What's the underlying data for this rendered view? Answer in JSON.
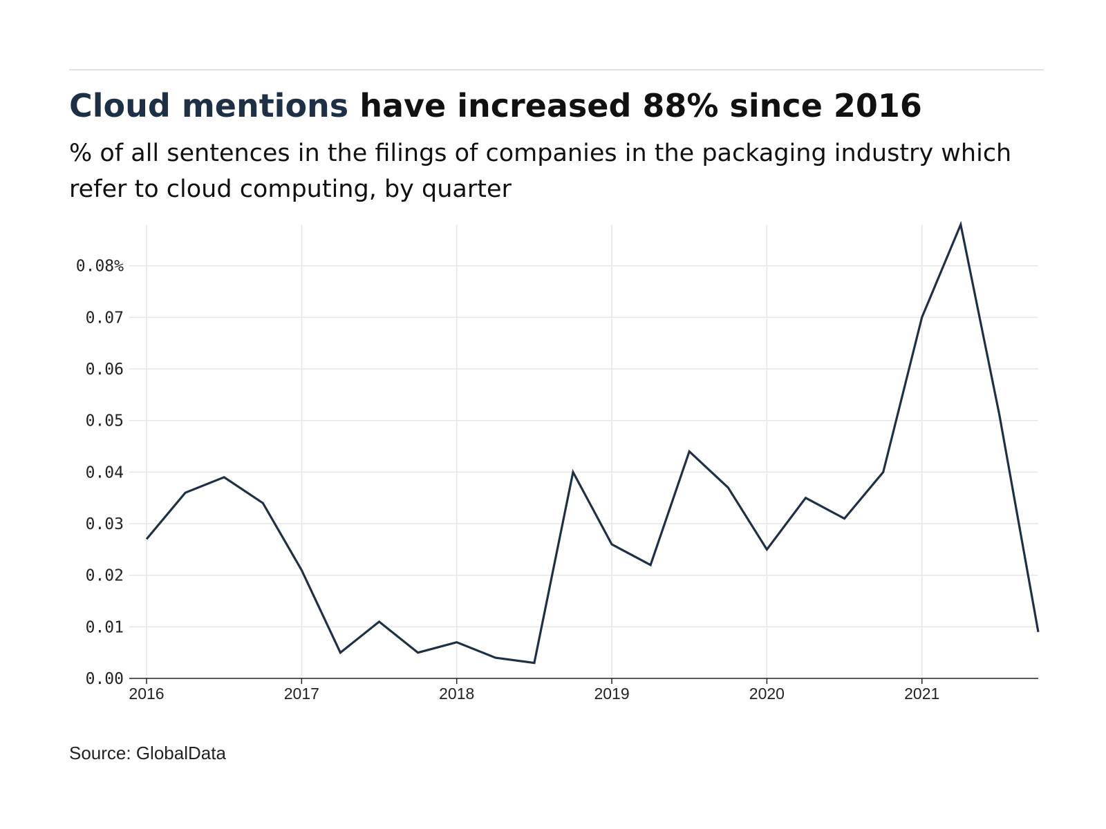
{
  "title": {
    "highlight": "Cloud mentions",
    "rest": " have increased 88% since 2016"
  },
  "subtitle": "% of all sentences in the filings of companies in the packaging industry which refer to cloud computing, by quarter",
  "source": "Source: GlobalData",
  "colors": {
    "line": "#1e3045",
    "title_highlight": "#1e3045",
    "grid": "#e6e6e6",
    "axis": "#222222"
  },
  "chart_data": {
    "type": "line",
    "title": "Cloud mentions have increased 88% since 2016",
    "subtitle": "% of all sentences in the filings of companies in the packaging industry which refer to cloud computing, by quarter",
    "xlabel": "",
    "ylabel": "",
    "x_ticks": [
      "2016",
      "2017",
      "2018",
      "2019",
      "2020",
      "2021"
    ],
    "y_ticks": [
      {
        "value": 0.0,
        "label": "0.00"
      },
      {
        "value": 0.01,
        "label": "0.01"
      },
      {
        "value": 0.02,
        "label": "0.02"
      },
      {
        "value": 0.03,
        "label": "0.03"
      },
      {
        "value": 0.04,
        "label": "0.04"
      },
      {
        "value": 0.05,
        "label": "0.05"
      },
      {
        "value": 0.06,
        "label": "0.06"
      },
      {
        "value": 0.07,
        "label": "0.07"
      },
      {
        "value": 0.08,
        "label": "0.08%"
      }
    ],
    "xlim": [
      2016,
      2021.75
    ],
    "ylim": [
      0,
      0.088
    ],
    "grid": true,
    "series": [
      {
        "x": [
          "2016 Q1",
          "2016 Q2",
          "2016 Q3",
          "2016 Q4",
          "2017 Q1",
          "2017 Q2",
          "2017 Q3",
          "2017 Q4",
          "2018 Q1",
          "2018 Q2",
          "2018 Q3",
          "2018 Q4",
          "2019 Q1",
          "2019 Q2",
          "2019 Q3",
          "2019 Q4",
          "2020 Q1",
          "2020 Q2",
          "2020 Q3",
          "2020 Q4",
          "2021 Q1",
          "2021 Q2",
          "2021 Q3",
          "2021 Q4"
        ],
        "values": [
          0.027,
          0.036,
          0.039,
          0.034,
          0.021,
          0.005,
          0.011,
          0.005,
          0.007,
          0.004,
          0.003,
          0.04,
          0.026,
          0.022,
          0.044,
          0.037,
          0.025,
          0.035,
          0.031,
          0.04,
          0.07,
          0.088,
          0.051,
          0.009
        ]
      }
    ]
  }
}
